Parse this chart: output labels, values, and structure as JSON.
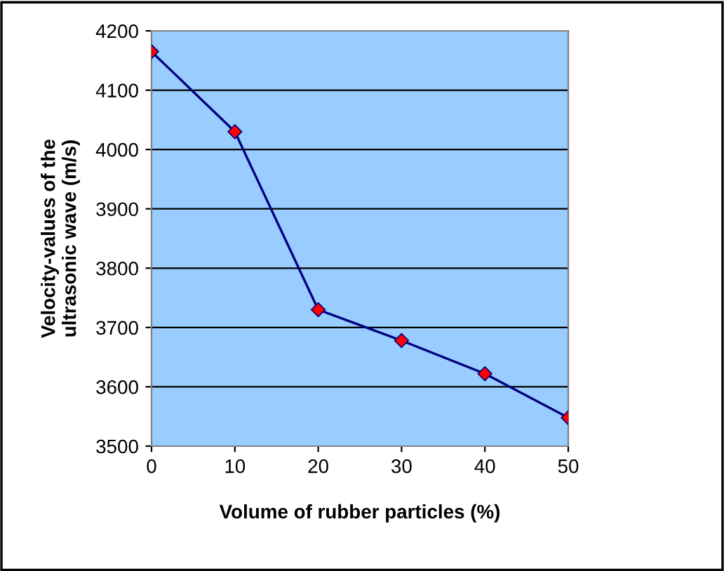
{
  "chart_data": {
    "type": "line",
    "xlabel": "Volume of rubber particles (%)",
    "ylabel": "Velocity-values of the\nultrasonic wave (m/s)",
    "x": [
      0,
      10,
      20,
      30,
      40,
      50
    ],
    "series": [
      {
        "color": "#000080",
        "values": [
          4165,
          4030,
          3730,
          3678,
          3622,
          3548
        ]
      }
    ],
    "marker": "diamond",
    "line_style": "solid",
    "grid": "y",
    "xlim": [
      0,
      50
    ],
    "xticks": [
      0,
      10,
      20,
      30,
      40,
      50
    ],
    "ylim": [
      3500,
      4200
    ],
    "yticks": [
      3500,
      3600,
      3700,
      3800,
      3900,
      4000,
      4100,
      4200
    ]
  }
}
